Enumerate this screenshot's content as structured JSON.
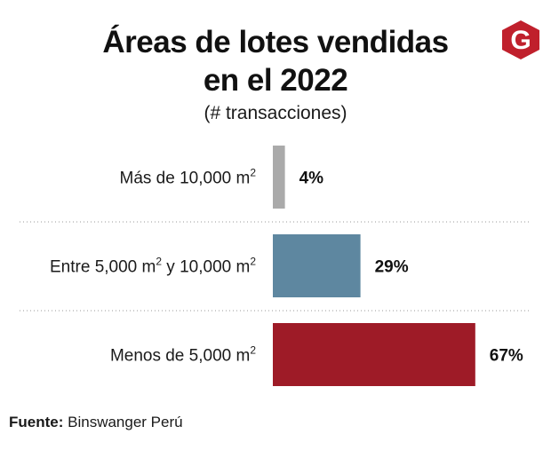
{
  "header": {
    "title_line1": "Áreas de lotes vendidas",
    "title_line2": "en el 2022",
    "subtitle": "(# transacciones)"
  },
  "logo": {
    "icon": "g-logo-icon",
    "letter": "G",
    "color": "#c0202c"
  },
  "source": {
    "label": "Fuente:",
    "text": "Binswanger Perú"
  },
  "chart_data": {
    "type": "bar",
    "orientation": "horizontal",
    "title": "Áreas de lotes vendidas en el 2022",
    "subtitle": "(# transacciones)",
    "unit": "%",
    "xlim": [
      0,
      100
    ],
    "grid": false,
    "categories": [
      {
        "text": "Más de 10,000 m",
        "sup": "2"
      },
      {
        "text": "Entre 5,000 m",
        "sup": "2",
        "text2": "  y 10,000 m",
        "sup2": "2"
      },
      {
        "text": "Menos de 5,000 m",
        "sup": "2"
      }
    ],
    "values": [
      4,
      29,
      67
    ],
    "value_labels": [
      "4%",
      "29%",
      "67%"
    ],
    "colors": [
      "#aaaaaa",
      "#5e87a0",
      "#9e1b27"
    ]
  }
}
